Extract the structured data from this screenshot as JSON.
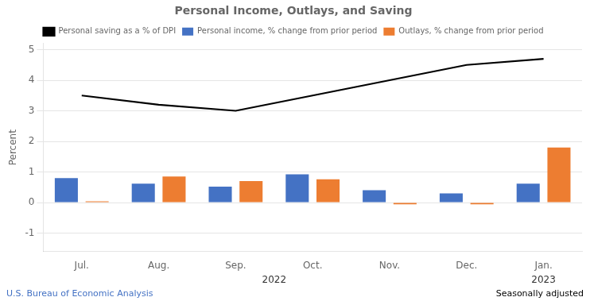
{
  "chart_data": {
    "type": "bar",
    "title": "Personal Income, Outlays, and Saving",
    "categories": [
      "Jul.",
      "Aug.",
      "Sep.",
      "Oct.",
      "Nov.",
      "Dec.",
      "Jan."
    ],
    "series": [
      {
        "name": "Personal income, % change from prior period",
        "color": "#4472c4",
        "type": "bar",
        "values": [
          0.8,
          0.62,
          0.52,
          0.92,
          0.4,
          0.3,
          0.62
        ]
      },
      {
        "name": "Outlays, % change from prior period",
        "color": "#ed7d31",
        "type": "bar",
        "values": [
          0.04,
          0.85,
          0.7,
          0.76,
          -0.06,
          -0.06,
          1.8
        ]
      },
      {
        "name": "Personal saving as a % of DPI",
        "color": "#000000",
        "type": "line",
        "values": [
          3.5,
          3.2,
          3.0,
          3.5,
          4.0,
          4.5,
          4.7
        ]
      }
    ],
    "ylabel": "Percent",
    "ylim": [
      -1.6,
      5.2
    ],
    "yticks": [
      -1,
      0,
      1,
      2,
      3,
      4,
      5
    ],
    "grid": true,
    "legend": "top",
    "annotations": [
      {
        "text": "2022",
        "from": "Jul.",
        "to": "Dec."
      },
      {
        "text": "2023",
        "from": "Jan.",
        "to": "Jan."
      }
    ],
    "source": "U.S. Bureau of Economic Analysis",
    "note": "Seasonally adjusted"
  }
}
